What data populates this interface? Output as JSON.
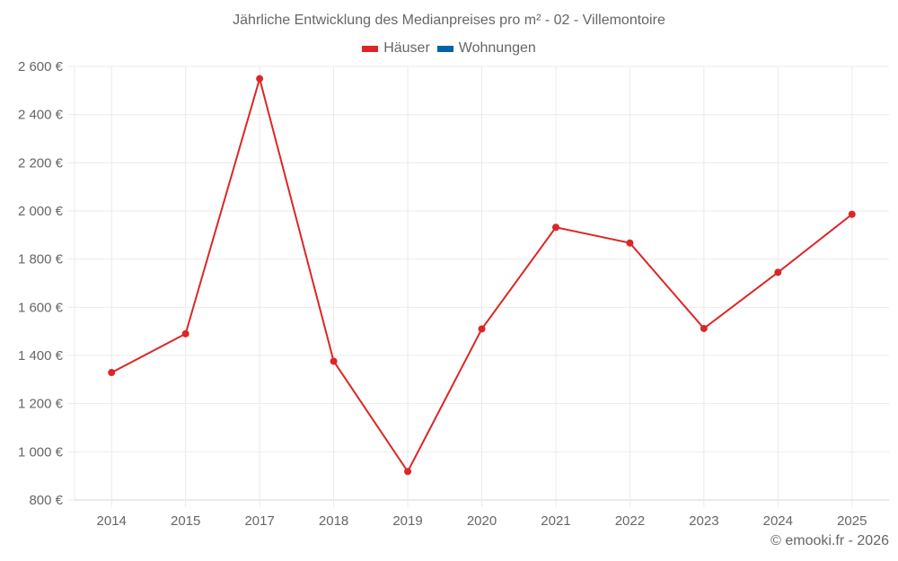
{
  "chart": {
    "title": "Jährliche Entwicklung des Medianpreises pro m² - 02 - Villemontoire",
    "legend": [
      {
        "label": "Häuser",
        "color": "#dc2626"
      },
      {
        "label": "Wohnungen",
        "color": "#0063a6"
      }
    ],
    "credit": "© emooki.fr - 2026"
  },
  "chart_data": {
    "type": "line",
    "title": "Jährliche Entwicklung des Medianpreises pro m² - 02 - Villemontoire",
    "xlabel": "",
    "ylabel": "",
    "categories": [
      "2014",
      "2015",
      "2017",
      "2018",
      "2019",
      "2020",
      "2021",
      "2022",
      "2023",
      "2024",
      "2025"
    ],
    "series": [
      {
        "name": "Häuser",
        "color": "#dc2626",
        "values": [
          1329,
          1490,
          2549,
          1376,
          918,
          1510,
          1932,
          1867,
          1512,
          1745,
          1986
        ]
      },
      {
        "name": "Wohnungen",
        "color": "#0063a6",
        "values": []
      }
    ],
    "ylim": [
      800,
      2600
    ],
    "yticks": [
      800,
      1000,
      1200,
      1400,
      1600,
      1800,
      2000,
      2200,
      2400,
      2600
    ],
    "ytick_labels": [
      "800 €",
      "1 000 €",
      "1 200 €",
      "1 400 €",
      "1 600 €",
      "1 800 €",
      "2 000 €",
      "2 200 €",
      "2 400 €",
      "2 600 €"
    ],
    "grid": true,
    "legend_position": "top"
  }
}
